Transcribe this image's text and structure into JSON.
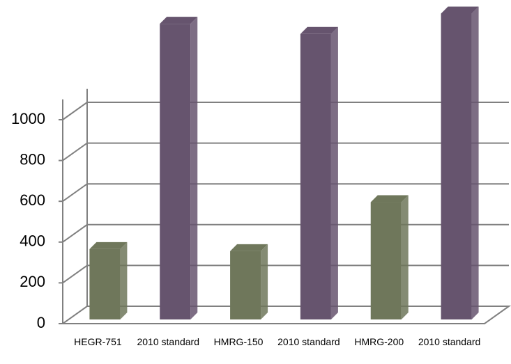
{
  "chart_data": {
    "type": "bar3d",
    "categories": [
      "HEGR-751",
      "2010 standard",
      "HMRG-150",
      "2010 standard",
      "HMRG-200",
      "2010 standard"
    ],
    "values": [
      345,
      1450,
      335,
      1400,
      575,
      1500
    ],
    "colors": [
      "#6f775b",
      "#66546e",
      "#6f775b",
      "#66546e",
      "#6f775b",
      "#66546e"
    ],
    "ylim": [
      0,
      1100
    ],
    "yticks": [
      0,
      200,
      400,
      600,
      800,
      1000
    ],
    "grid": true
  }
}
